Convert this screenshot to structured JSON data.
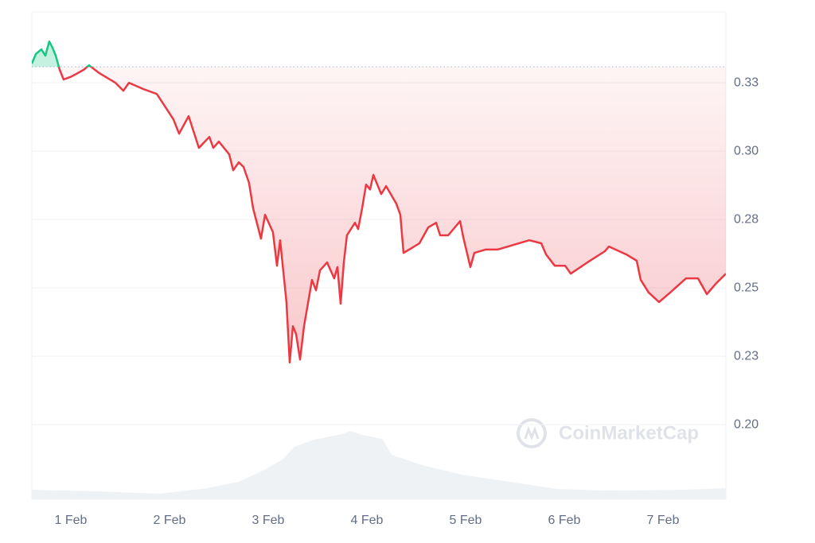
{
  "chart_data": {
    "type": "line",
    "x": [
      0.605,
      0.645,
      0.702,
      0.742,
      0.782,
      0.815,
      0.847,
      0.887,
      0.927,
      1.008,
      1.129,
      1.185,
      1.29,
      1.452,
      1.532,
      1.589,
      1.734,
      1.871,
      1.935,
      2.04,
      2.097,
      2.194,
      2.298,
      2.403,
      2.444,
      2.5,
      2.605,
      2.645,
      2.702,
      2.75,
      2.806,
      2.847,
      2.927,
      2.968,
      3.048,
      3.089,
      3.121,
      3.185,
      3.218,
      3.25,
      3.282,
      3.323,
      3.363,
      3.444,
      3.484,
      3.524,
      3.597,
      3.669,
      3.702,
      3.734,
      3.766,
      3.798,
      3.879,
      3.911,
      3.952,
      3.992,
      4.032,
      4.065,
      4.145,
      4.194,
      4.298,
      4.339,
      4.371,
      4.452,
      4.532,
      4.621,
      4.702,
      4.742,
      4.823,
      4.944,
      4.976,
      5.048,
      5.089,
      5.202,
      5.323,
      5.484,
      5.645,
      5.766,
      5.815,
      5.903,
      6.008,
      6.065,
      6.234,
      6.411,
      6.452,
      6.629,
      6.734,
      6.774,
      6.855,
      6.96,
      7.073,
      7.234,
      7.355,
      7.444,
      7.54,
      7.637
    ],
    "values": [
      0.332,
      0.3355,
      0.3372,
      0.3349,
      0.3401,
      0.3378,
      0.3349,
      0.3297,
      0.3262,
      0.3273,
      0.3297,
      0.3314,
      0.3285,
      0.325,
      0.3221,
      0.325,
      0.3227,
      0.3209,
      0.3174,
      0.3116,
      0.3064,
      0.3128,
      0.3012,
      0.3052,
      0.3012,
      0.3035,
      0.2988,
      0.293,
      0.2959,
      0.2942,
      0.2884,
      0.2791,
      0.268,
      0.2767,
      0.2704,
      0.2581,
      0.2674,
      0.2448,
      0.2227,
      0.236,
      0.2331,
      0.2238,
      0.236,
      0.2529,
      0.2491,
      0.2564,
      0.2593,
      0.2535,
      0.2576,
      0.2442,
      0.2593,
      0.2692,
      0.2738,
      0.2715,
      0.2791,
      0.2878,
      0.286,
      0.2913,
      0.2843,
      0.2872,
      0.2808,
      0.2767,
      0.2628,
      0.2645,
      0.2663,
      0.2721,
      0.2738,
      0.2692,
      0.2692,
      0.2744,
      0.2686,
      0.2576,
      0.2628,
      0.264,
      0.264,
      0.2657,
      0.2674,
      0.2663,
      0.2622,
      0.2581,
      0.2581,
      0.2552,
      0.2593,
      0.2634,
      0.2651,
      0.2622,
      0.2599,
      0.2529,
      0.2483,
      0.2448,
      0.2483,
      0.2535,
      0.2535,
      0.2477,
      0.2517,
      0.2552
    ],
    "color": "#ea3943",
    "up_color": "#16c784",
    "reference_value": 0.3308,
    "xlim": [
      0.605,
      7.637
    ],
    "xticks": [
      {
        "value": 1,
        "label": "1 Feb"
      },
      {
        "value": 2,
        "label": "2 Feb"
      },
      {
        "value": 3,
        "label": "3 Feb"
      },
      {
        "value": 4,
        "label": "4 Feb"
      },
      {
        "value": 5,
        "label": "5 Feb"
      },
      {
        "value": 6,
        "label": "6 Feb"
      },
      {
        "value": 7,
        "label": "7 Feb"
      }
    ],
    "ylim": [
      0.1727,
      0.3509
    ],
    "yticks": [
      {
        "value": 0.325,
        "label": "0.33"
      },
      {
        "value": 0.3,
        "label": "0.30"
      },
      {
        "value": 0.275,
        "label": "0.28"
      },
      0.25,
      {
        "value": 0.225,
        "label": "0.23"
      },
      {
        "value": 0.2,
        "label": "0.20"
      }
    ],
    "grid": true,
    "watermark": "CoinMarketCap"
  }
}
